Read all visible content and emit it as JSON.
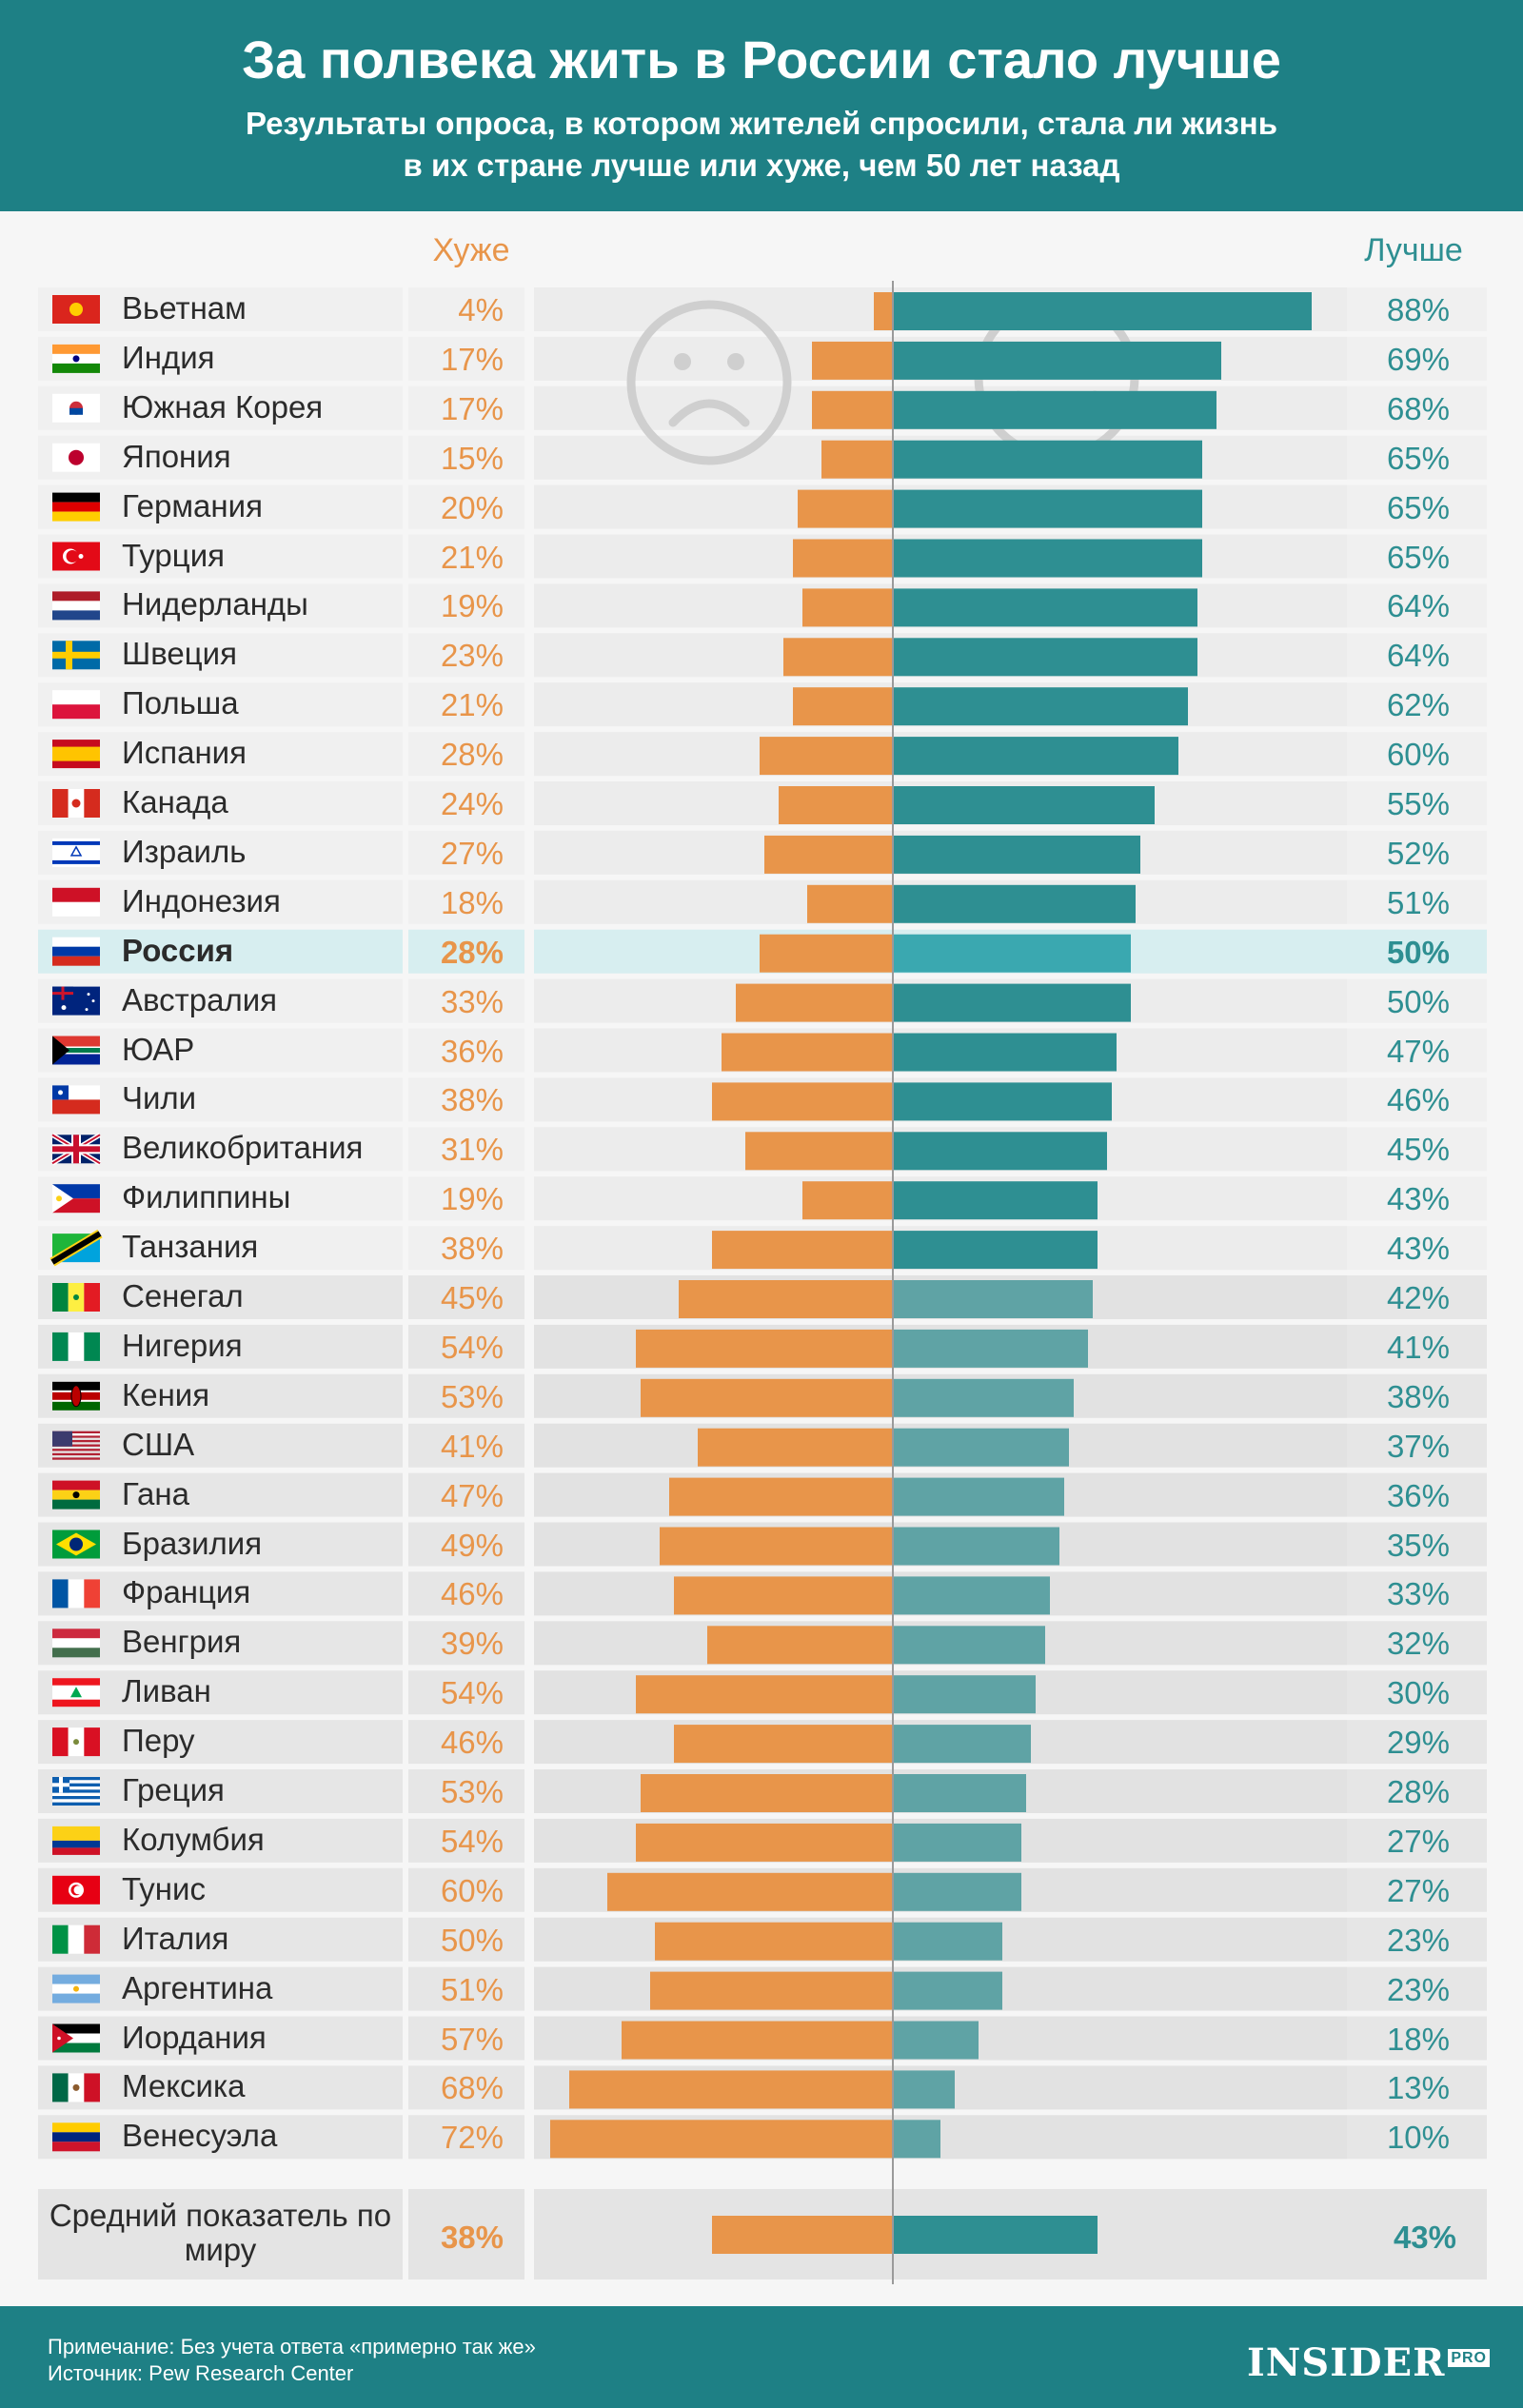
{
  "header": {
    "title": "За полвека жить в России стало лучше",
    "subtitle": "Результаты опроса, в котором жителей спросили, стала ли жизнь в их стране лучше или хуже, чем 50 лет назад"
  },
  "columns": {
    "worse": "Хуже",
    "better": "Лучше"
  },
  "colors": {
    "worse": "#e8954a",
    "better": "#2e8f92",
    "better_lower": "#5fa3a5",
    "better_highlight": "#3aa8b0",
    "header_bg": "#1e8085",
    "highlight_row": "#d7eef0"
  },
  "chart_data": {
    "type": "bar",
    "title": "За полвека жить в России стало лучше",
    "categories": [
      "Вьетнам",
      "Индия",
      "Южная Корея",
      "Япония",
      "Германия",
      "Турция",
      "Нидерланды",
      "Швеция",
      "Польша",
      "Испания",
      "Канада",
      "Израиль",
      "Индонезия",
      "Россия",
      "Австралия",
      "ЮАР",
      "Чили",
      "Великобритания",
      "Филиппины",
      "Танзания",
      "Сенегал",
      "Нигерия",
      "Кения",
      "США",
      "Гана",
      "Бразилия",
      "Франция",
      "Венгрия",
      "Ливан",
      "Перу",
      "Греция",
      "Колумбия",
      "Тунис",
      "Италия",
      "Аргентина",
      "Иордания",
      "Мексика",
      "Венесуэла"
    ],
    "series": [
      {
        "name": "Хуже",
        "values": [
          4,
          17,
          17,
          15,
          20,
          21,
          19,
          23,
          21,
          28,
          24,
          27,
          18,
          28,
          33,
          36,
          38,
          31,
          19,
          38,
          45,
          54,
          53,
          41,
          47,
          49,
          46,
          39,
          54,
          46,
          53,
          54,
          60,
          50,
          51,
          57,
          68,
          72
        ]
      },
      {
        "name": "Лучше",
        "values": [
          88,
          69,
          68,
          65,
          65,
          65,
          64,
          64,
          62,
          60,
          55,
          52,
          51,
          50,
          50,
          47,
          46,
          45,
          43,
          43,
          42,
          41,
          38,
          37,
          36,
          35,
          33,
          32,
          30,
          29,
          28,
          27,
          27,
          23,
          23,
          18,
          13,
          10
        ]
      }
    ],
    "highlight": "Россия",
    "average": {
      "label": "Средний показатель по миру",
      "worse": 38,
      "better": 43
    },
    "xlim": [
      0,
      100
    ]
  },
  "rows_text": [
    {
      "name": "Вьетнам",
      "flag": "vietnam-flag-icon",
      "worse": "4%",
      "better": "88%"
    },
    {
      "name": "Индия",
      "flag": "india-flag-icon",
      "worse": "17%",
      "better": "69%"
    },
    {
      "name": "Южная Корея",
      "flag": "south-korea-flag-icon",
      "worse": "17%",
      "better": "68%"
    },
    {
      "name": "Япония",
      "flag": "japan-flag-icon",
      "worse": "15%",
      "better": "65%"
    },
    {
      "name": "Германия",
      "flag": "germany-flag-icon",
      "worse": "20%",
      "better": "65%"
    },
    {
      "name": "Турция",
      "flag": "turkey-flag-icon",
      "worse": "21%",
      "better": "65%"
    },
    {
      "name": "Нидерланды",
      "flag": "netherlands-flag-icon",
      "worse": "19%",
      "better": "64%"
    },
    {
      "name": "Швеция",
      "flag": "sweden-flag-icon",
      "worse": "23%",
      "better": "64%"
    },
    {
      "name": "Польша",
      "flag": "poland-flag-icon",
      "worse": "21%",
      "better": "62%"
    },
    {
      "name": "Испания",
      "flag": "spain-flag-icon",
      "worse": "28%",
      "better": "60%"
    },
    {
      "name": "Канада",
      "flag": "canada-flag-icon",
      "worse": "24%",
      "better": "55%"
    },
    {
      "name": "Израиль",
      "flag": "israel-flag-icon",
      "worse": "27%",
      "better": "52%"
    },
    {
      "name": "Индонезия",
      "flag": "indonesia-flag-icon",
      "worse": "18%",
      "better": "51%"
    },
    {
      "name": "Россия",
      "flag": "russia-flag-icon",
      "worse": "28%",
      "better": "50%"
    },
    {
      "name": "Австралия",
      "flag": "australia-flag-icon",
      "worse": "33%",
      "better": "50%"
    },
    {
      "name": "ЮАР",
      "flag": "south-africa-flag-icon",
      "worse": "36%",
      "better": "47%"
    },
    {
      "name": "Чили",
      "flag": "chile-flag-icon",
      "worse": "38%",
      "better": "46%"
    },
    {
      "name": "Великобритания",
      "flag": "uk-flag-icon",
      "worse": "31%",
      "better": "45%"
    },
    {
      "name": "Филиппины",
      "flag": "philippines-flag-icon",
      "worse": "19%",
      "better": "43%"
    },
    {
      "name": "Танзания",
      "flag": "tanzania-flag-icon",
      "worse": "38%",
      "better": "43%"
    },
    {
      "name": "Сенегал",
      "flag": "senegal-flag-icon",
      "worse": "45%",
      "better": "42%"
    },
    {
      "name": "Нигерия",
      "flag": "nigeria-flag-icon",
      "worse": "54%",
      "better": "41%"
    },
    {
      "name": "Кения",
      "flag": "kenya-flag-icon",
      "worse": "53%",
      "better": "38%"
    },
    {
      "name": "США",
      "flag": "usa-flag-icon",
      "worse": "41%",
      "better": "37%"
    },
    {
      "name": "Гана",
      "flag": "ghana-flag-icon",
      "worse": "47%",
      "better": "36%"
    },
    {
      "name": "Бразилия",
      "flag": "brazil-flag-icon",
      "worse": "49%",
      "better": "35%"
    },
    {
      "name": "Франция",
      "flag": "france-flag-icon",
      "worse": "46%",
      "better": "33%"
    },
    {
      "name": "Венгрия",
      "flag": "hungary-flag-icon",
      "worse": "39%",
      "better": "32%"
    },
    {
      "name": "Ливан",
      "flag": "lebanon-flag-icon",
      "worse": "54%",
      "better": "30%"
    },
    {
      "name": "Перу",
      "flag": "peru-flag-icon",
      "worse": "46%",
      "better": "29%"
    },
    {
      "name": "Греция",
      "flag": "greece-flag-icon",
      "worse": "53%",
      "better": "28%"
    },
    {
      "name": "Колумбия",
      "flag": "colombia-flag-icon",
      "worse": "54%",
      "better": "27%"
    },
    {
      "name": "Тунис",
      "flag": "tunisia-flag-icon",
      "worse": "60%",
      "better": "27%"
    },
    {
      "name": "Италия",
      "flag": "italy-flag-icon",
      "worse": "50%",
      "better": "23%"
    },
    {
      "name": "Аргентина",
      "flag": "argentina-flag-icon",
      "worse": "51%",
      "better": "23%"
    },
    {
      "name": "Иордания",
      "flag": "jordan-flag-icon",
      "worse": "57%",
      "better": "18%"
    },
    {
      "name": "Мексика",
      "flag": "mexico-flag-icon",
      "worse": "68%",
      "better": "13%"
    },
    {
      "name": "Венесуэла",
      "flag": "venezuela-flag-icon",
      "worse": "72%",
      "better": "10%"
    }
  ],
  "average_text": {
    "label": "Средний показатель по миру",
    "worse": "38%",
    "better": "43%"
  },
  "footer": {
    "note": "Примечание: Без учета ответа «примерно так же»",
    "source": "Источник: Pew Research Center",
    "logo": "INSIDER",
    "logo_suffix": "PRO"
  }
}
